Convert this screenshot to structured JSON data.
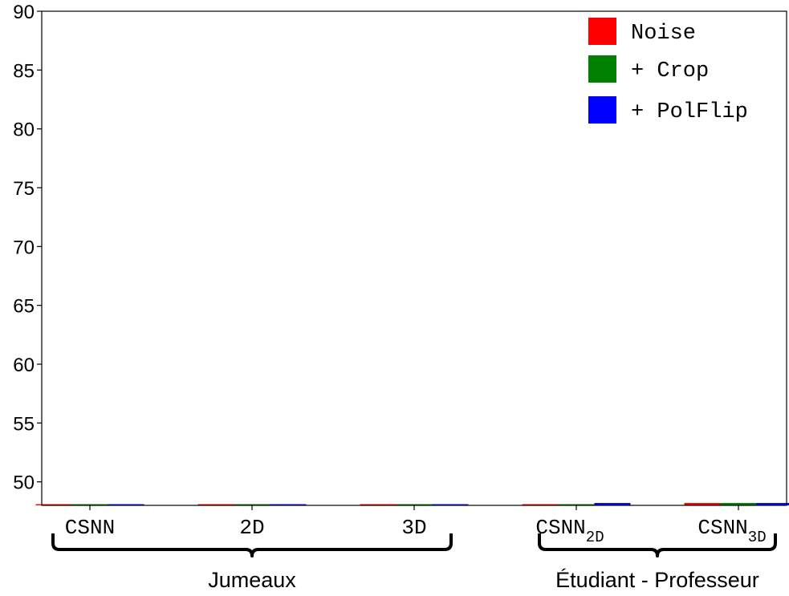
{
  "chart_data": {
    "type": "bar",
    "categories": [
      {
        "main": "CSNN",
        "sub": ""
      },
      {
        "main": "2D",
        "sub": ""
      },
      {
        "main": "3D",
        "sub": ""
      },
      {
        "main": "CSNN",
        "sub": "2D"
      },
      {
        "main": "CSNN",
        "sub": "3D"
      }
    ],
    "series": [
      {
        "name": "Noise",
        "color": "#ff0000",
        "values": [
          48.1,
          48.1,
          48.1,
          48.1,
          48.2
        ]
      },
      {
        "name": "+ Crop",
        "color": "#008000",
        "values": [
          48.1,
          48.1,
          48.1,
          48.1,
          48.2
        ]
      },
      {
        "name": "+ PolFlip",
        "color": "#0000ff",
        "values": [
          48.1,
          48.1,
          48.1,
          48.2,
          48.2
        ]
      }
    ],
    "ylim": [
      48,
      90
    ],
    "yticks": [
      50,
      55,
      60,
      65,
      70,
      75,
      80,
      85,
      90
    ],
    "groups": [
      {
        "label": "Jumeaux",
        "categories": [
          0,
          1,
          2
        ]
      },
      {
        "label": "Étudiant - Professeur",
        "categories": [
          3,
          4
        ]
      }
    ],
    "legend": "top-right",
    "grid": false,
    "title": "",
    "xlabel": "",
    "ylabel": ""
  }
}
